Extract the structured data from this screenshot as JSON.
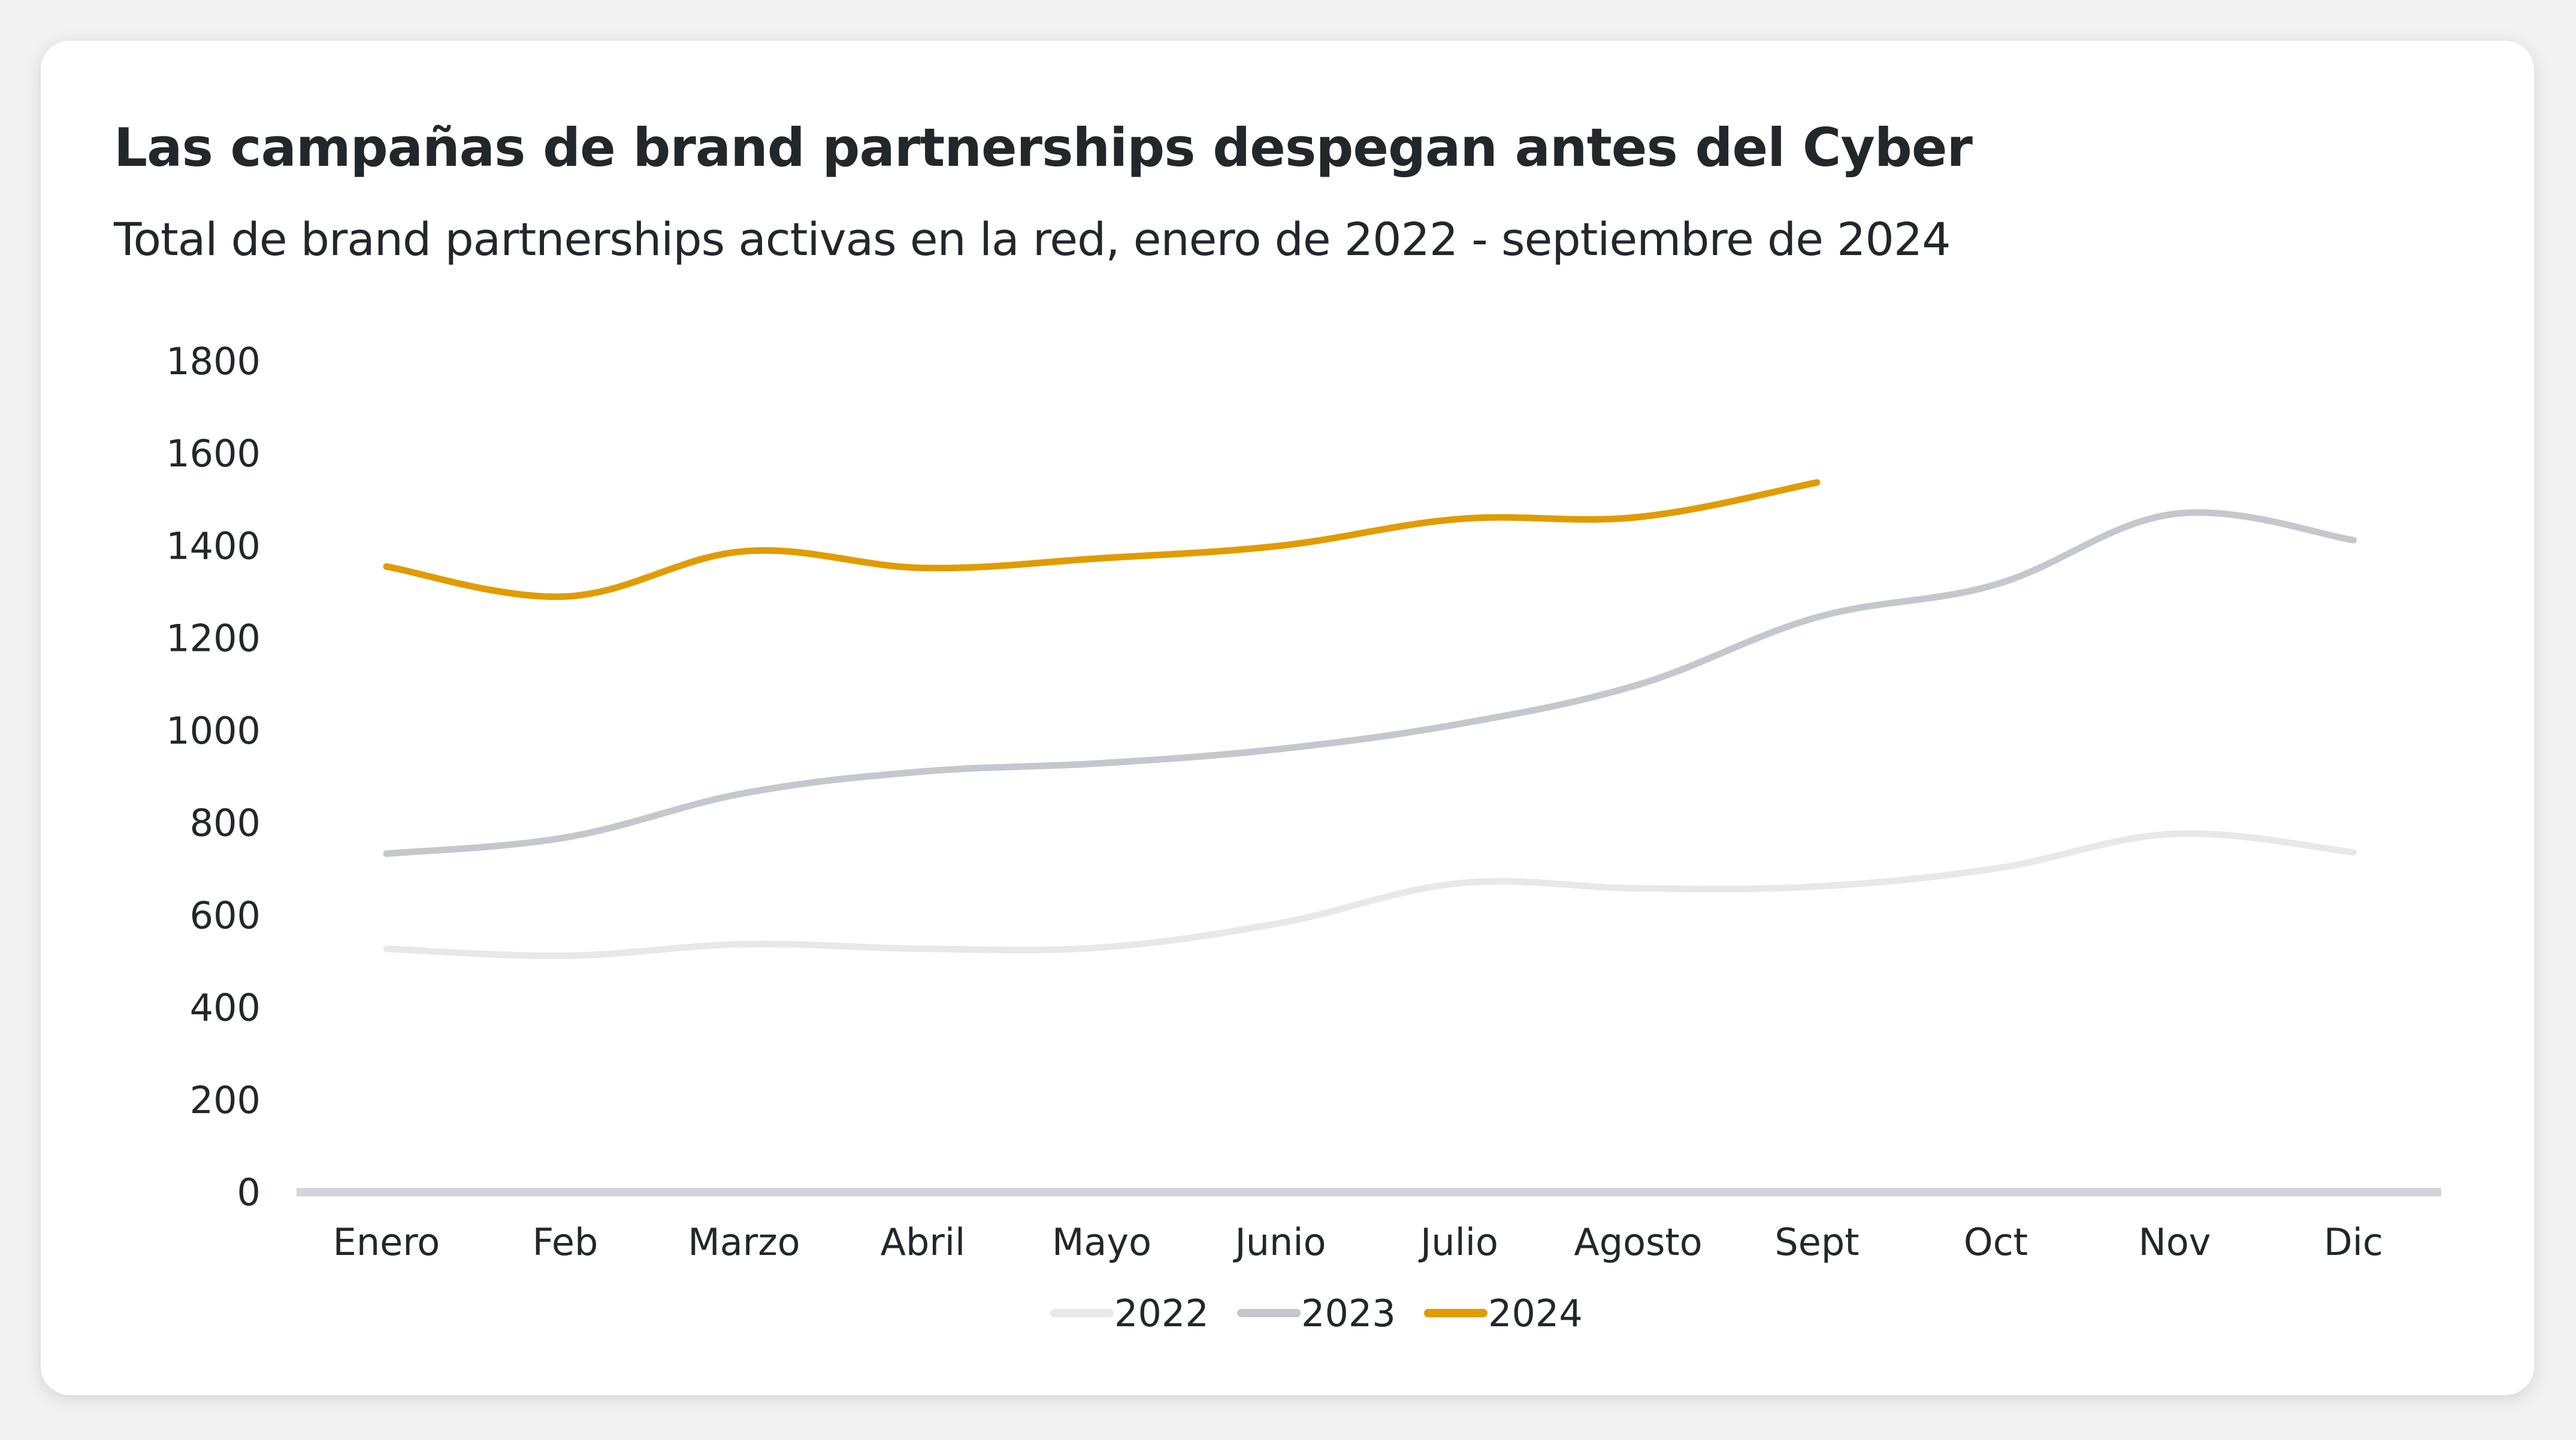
{
  "chart_data": {
    "type": "line",
    "title": "Las campañas de brand partnerships despegan antes del Cyber",
    "subtitle": "Total de brand partnerships activas en la red, enero de 2022 - septiembre de 2024",
    "xlabel": "",
    "ylabel": "",
    "categories": [
      "Enero",
      "Feb",
      "Marzo",
      "Abril",
      "Mayo",
      "Junio",
      "Julio",
      "Agosto",
      "Sept",
      "Oct",
      "Nov",
      "Dic"
    ],
    "yticks": [
      0,
      200,
      400,
      600,
      800,
      1000,
      1200,
      1400,
      1600,
      1800
    ],
    "ylim": [
      0,
      1800
    ],
    "grid": false,
    "legend_position": "bottom-center",
    "series": [
      {
        "name": "2022",
        "color": "#e6e8ea",
        "values": [
          527,
          512,
          537,
          527,
          530,
          583,
          669,
          658,
          662,
          701,
          776,
          736
        ]
      },
      {
        "name": "2023",
        "color": "#c3c8ce",
        "values": [
          733,
          768,
          864,
          911,
          929,
          960,
          1014,
          1099,
          1245,
          1316,
          1469,
          1412
        ]
      },
      {
        "name": "2024",
        "color": "#e09c00",
        "values": [
          1355,
          1290,
          1388,
          1352,
          1373,
          1400,
          1458,
          1462,
          1537,
          null,
          null,
          null
        ]
      }
    ],
    "axis_color": "#d4d5d8"
  }
}
